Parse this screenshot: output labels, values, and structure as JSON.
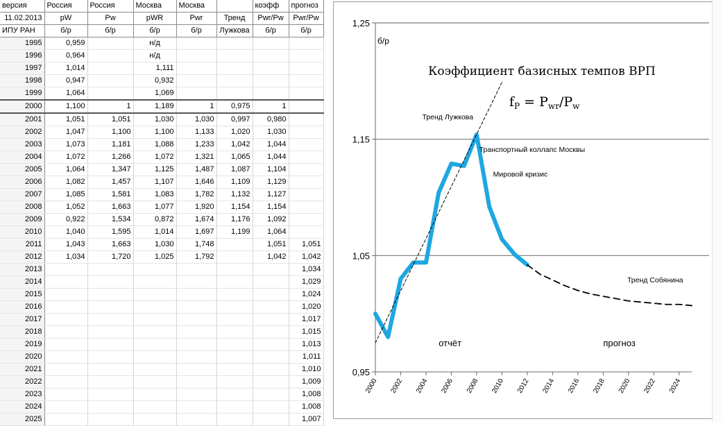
{
  "sheet": {
    "header_row1": [
      "версия",
      "Россия",
      "Россия",
      "Москва",
      "Москва",
      "",
      "коэфф",
      "прогноз"
    ],
    "header_row2": [
      "11.02.2013",
      "pW",
      "Pw",
      "pWR",
      "Pwr",
      "Тренд",
      "Pwr/Pw",
      "Pwr/Pw"
    ],
    "header_row3": [
      "ИПУ РАН",
      "б/р",
      "б/р",
      "б/р",
      "б/р",
      "Лужкова",
      "б/р",
      "б/р"
    ],
    "rows": [
      [
        "1995",
        "0,959",
        "",
        "н/д",
        "",
        "",
        "",
        ""
      ],
      [
        "1996",
        "0,964",
        "",
        "н/д",
        "",
        "",
        "",
        ""
      ],
      [
        "1997",
        "1,014",
        "",
        "1,111",
        "",
        "",
        "",
        ""
      ],
      [
        "1998",
        "0,947",
        "",
        "0,932",
        "",
        "",
        "",
        ""
      ],
      [
        "1999",
        "1,064",
        "",
        "1,069",
        "",
        "",
        "",
        ""
      ],
      [
        "2000",
        "1,100",
        "1",
        "1,189",
        "1",
        "0,975",
        "1",
        ""
      ],
      [
        "2001",
        "1,051",
        "1,051",
        "1,030",
        "1,030",
        "0,997",
        "0,980",
        ""
      ],
      [
        "2002",
        "1,047",
        "1,100",
        "1,100",
        "1,133",
        "1,020",
        "1,030",
        ""
      ],
      [
        "2003",
        "1,073",
        "1,181",
        "1,088",
        "1,233",
        "1,042",
        "1,044",
        ""
      ],
      [
        "2004",
        "1,072",
        "1,266",
        "1,072",
        "1,321",
        "1,065",
        "1,044",
        ""
      ],
      [
        "2005",
        "1,064",
        "1,347",
        "1,125",
        "1,487",
        "1,087",
        "1,104",
        ""
      ],
      [
        "2006",
        "1,082",
        "1,457",
        "1,107",
        "1,646",
        "1,109",
        "1,129",
        ""
      ],
      [
        "2007",
        "1,085",
        "1,581",
        "1,083",
        "1,782",
        "1,132",
        "1,127",
        ""
      ],
      [
        "2008",
        "1,052",
        "1,663",
        "1,077",
        "1,920",
        "1,154",
        "1,154",
        ""
      ],
      [
        "2009",
        "0,922",
        "1,534",
        "0,872",
        "1,674",
        "1,176",
        "1,092",
        ""
      ],
      [
        "2010",
        "1,040",
        "1,595",
        "1,014",
        "1,697",
        "1,199",
        "1,064",
        ""
      ],
      [
        "2011",
        "1,043",
        "1,663",
        "1,030",
        "1,748",
        "",
        "1,051",
        "1,051"
      ],
      [
        "2012",
        "1,034",
        "1,720",
        "1,025",
        "1,792",
        "",
        "1,042",
        "1,042"
      ],
      [
        "2013",
        "",
        "",
        "",
        "",
        "",
        "",
        "1,034"
      ],
      [
        "2014",
        "",
        "",
        "",
        "",
        "",
        "",
        "1,029"
      ],
      [
        "2015",
        "",
        "",
        "",
        "",
        "",
        "",
        "1,024"
      ],
      [
        "2016",
        "",
        "",
        "",
        "",
        "",
        "",
        "1,020"
      ],
      [
        "2017",
        "",
        "",
        "",
        "",
        "",
        "",
        "1,017"
      ],
      [
        "2018",
        "",
        "",
        "",
        "",
        "",
        "",
        "1,015"
      ],
      [
        "2019",
        "",
        "",
        "",
        "",
        "",
        "",
        "1,013"
      ],
      [
        "2020",
        "",
        "",
        "",
        "",
        "",
        "",
        "1,011"
      ],
      [
        "2021",
        "",
        "",
        "",
        "",
        "",
        "",
        "1,010"
      ],
      [
        "2022",
        "",
        "",
        "",
        "",
        "",
        "",
        "1,009"
      ],
      [
        "2023",
        "",
        "",
        "",
        "",
        "",
        "",
        "1,008"
      ],
      [
        "2024",
        "",
        "",
        "",
        "",
        "",
        "",
        "1,008"
      ],
      [
        "2025",
        "",
        "",
        "",
        "",
        "",
        "",
        "1,007"
      ]
    ]
  },
  "chart_data": {
    "type": "line",
    "title": "Коэффициент базисных темпов  ВРП",
    "formula": {
      "base": "f",
      "sub": "P",
      "rhs": "= P",
      "rhs_sub1": "wr",
      "slash": "/P",
      "rhs_sub2": "w"
    },
    "ylabel": "б/р",
    "ylim": [
      0.95,
      1.25
    ],
    "yticks": [
      0.95,
      1.05,
      1.15,
      1.25
    ],
    "ytick_labels": [
      "0,95",
      "1,05",
      "1,15",
      "1,25"
    ],
    "xlim": [
      2000,
      2025
    ],
    "xticks": [
      2000,
      2002,
      2004,
      2006,
      2008,
      2010,
      2012,
      2014,
      2016,
      2018,
      2020,
      2022,
      2024
    ],
    "grid": "horizontal",
    "series": [
      {
        "name": "",
        "style": "solid",
        "color": "#1ea7e1",
        "x": [
          2000,
          2001,
          2002,
          2003,
          2004,
          2005,
          2006,
          2007,
          2008,
          2009,
          2010,
          2011,
          2012
        ],
        "y": [
          1.0,
          0.98,
          1.03,
          1.044,
          1.044,
          1.104,
          1.129,
          1.127,
          1.154,
          1.092,
          1.064,
          1.051,
          1.042
        ]
      },
      {
        "name": "",
        "style": "dashed",
        "color": "#000000",
        "x": [
          2012,
          2013,
          2014,
          2015,
          2016,
          2017,
          2018,
          2019,
          2020,
          2021,
          2022,
          2023,
          2024,
          2025
        ],
        "y": [
          1.042,
          1.034,
          1.029,
          1.024,
          1.02,
          1.017,
          1.015,
          1.013,
          1.011,
          1.01,
          1.009,
          1.008,
          1.008,
          1.007
        ]
      },
      {
        "name": "",
        "style": "thin-dashed",
        "color": "#000000",
        "x": [
          2000,
          2010
        ],
        "y": [
          0.975,
          1.199
        ]
      }
    ],
    "annotations": [
      {
        "text": "Тренд Лужкова",
        "x": 2003.7,
        "y": 1.167
      },
      {
        "text": "Транспортный коллапс Москвы",
        "x": 2008.2,
        "y": 1.139
      },
      {
        "text": "Мировой кризис",
        "x": 2009.3,
        "y": 1.118
      },
      {
        "text": "Тренд Собянина",
        "x": 2019.9,
        "y": 1.027
      },
      {
        "text": "отчёт",
        "x": 2005.0,
        "y": 0.972
      },
      {
        "text": "прогноз",
        "x": 2018.0,
        "y": 0.972
      }
    ]
  }
}
